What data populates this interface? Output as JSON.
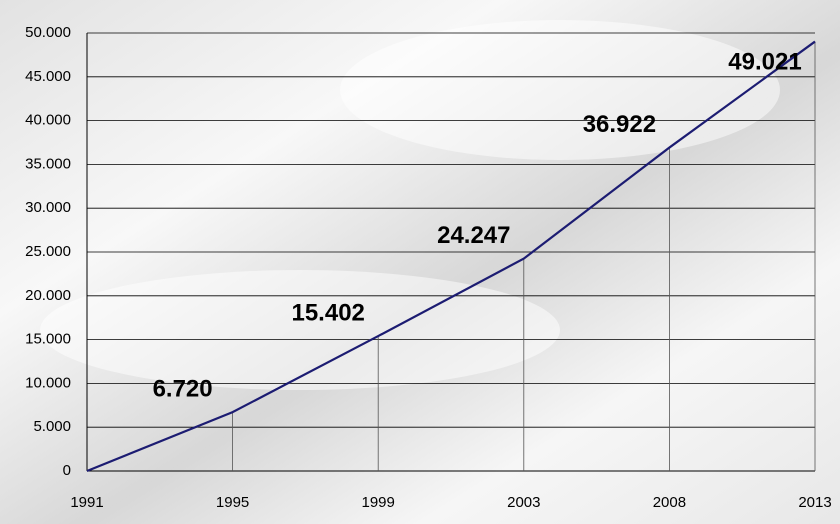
{
  "chart_data": {
    "type": "line",
    "categories": [
      "1991",
      "1995",
      "1999",
      "2003",
      "2008",
      "2013"
    ],
    "series": [
      {
        "color": "#1c1c72",
        "values": [
          0,
          6720,
          15402,
          24247,
          36922,
          49021
        ],
        "value_labels": [
          null,
          "6.720",
          "15.402",
          "24.247",
          "36.922",
          "49.021"
        ]
      }
    ],
    "ylim": [
      0,
      50000
    ],
    "yticks": [
      0,
      {
        "value": 5000,
        "label": "5.000"
      },
      {
        "value": 10000,
        "label": "10.000"
      },
      {
        "value": 15000,
        "label": "15.000"
      },
      {
        "value": 20000,
        "label": "20.000"
      },
      {
        "value": 25000,
        "label": "25.000"
      },
      {
        "value": 30000,
        "label": "30.000"
      },
      {
        "value": 35000,
        "label": "35.000"
      },
      {
        "value": 40000,
        "label": "40.000"
      },
      {
        "value": 45000,
        "label": "45.000"
      },
      {
        "value": 50000,
        "label": "50.000"
      }
    ],
    "grid": true
  }
}
